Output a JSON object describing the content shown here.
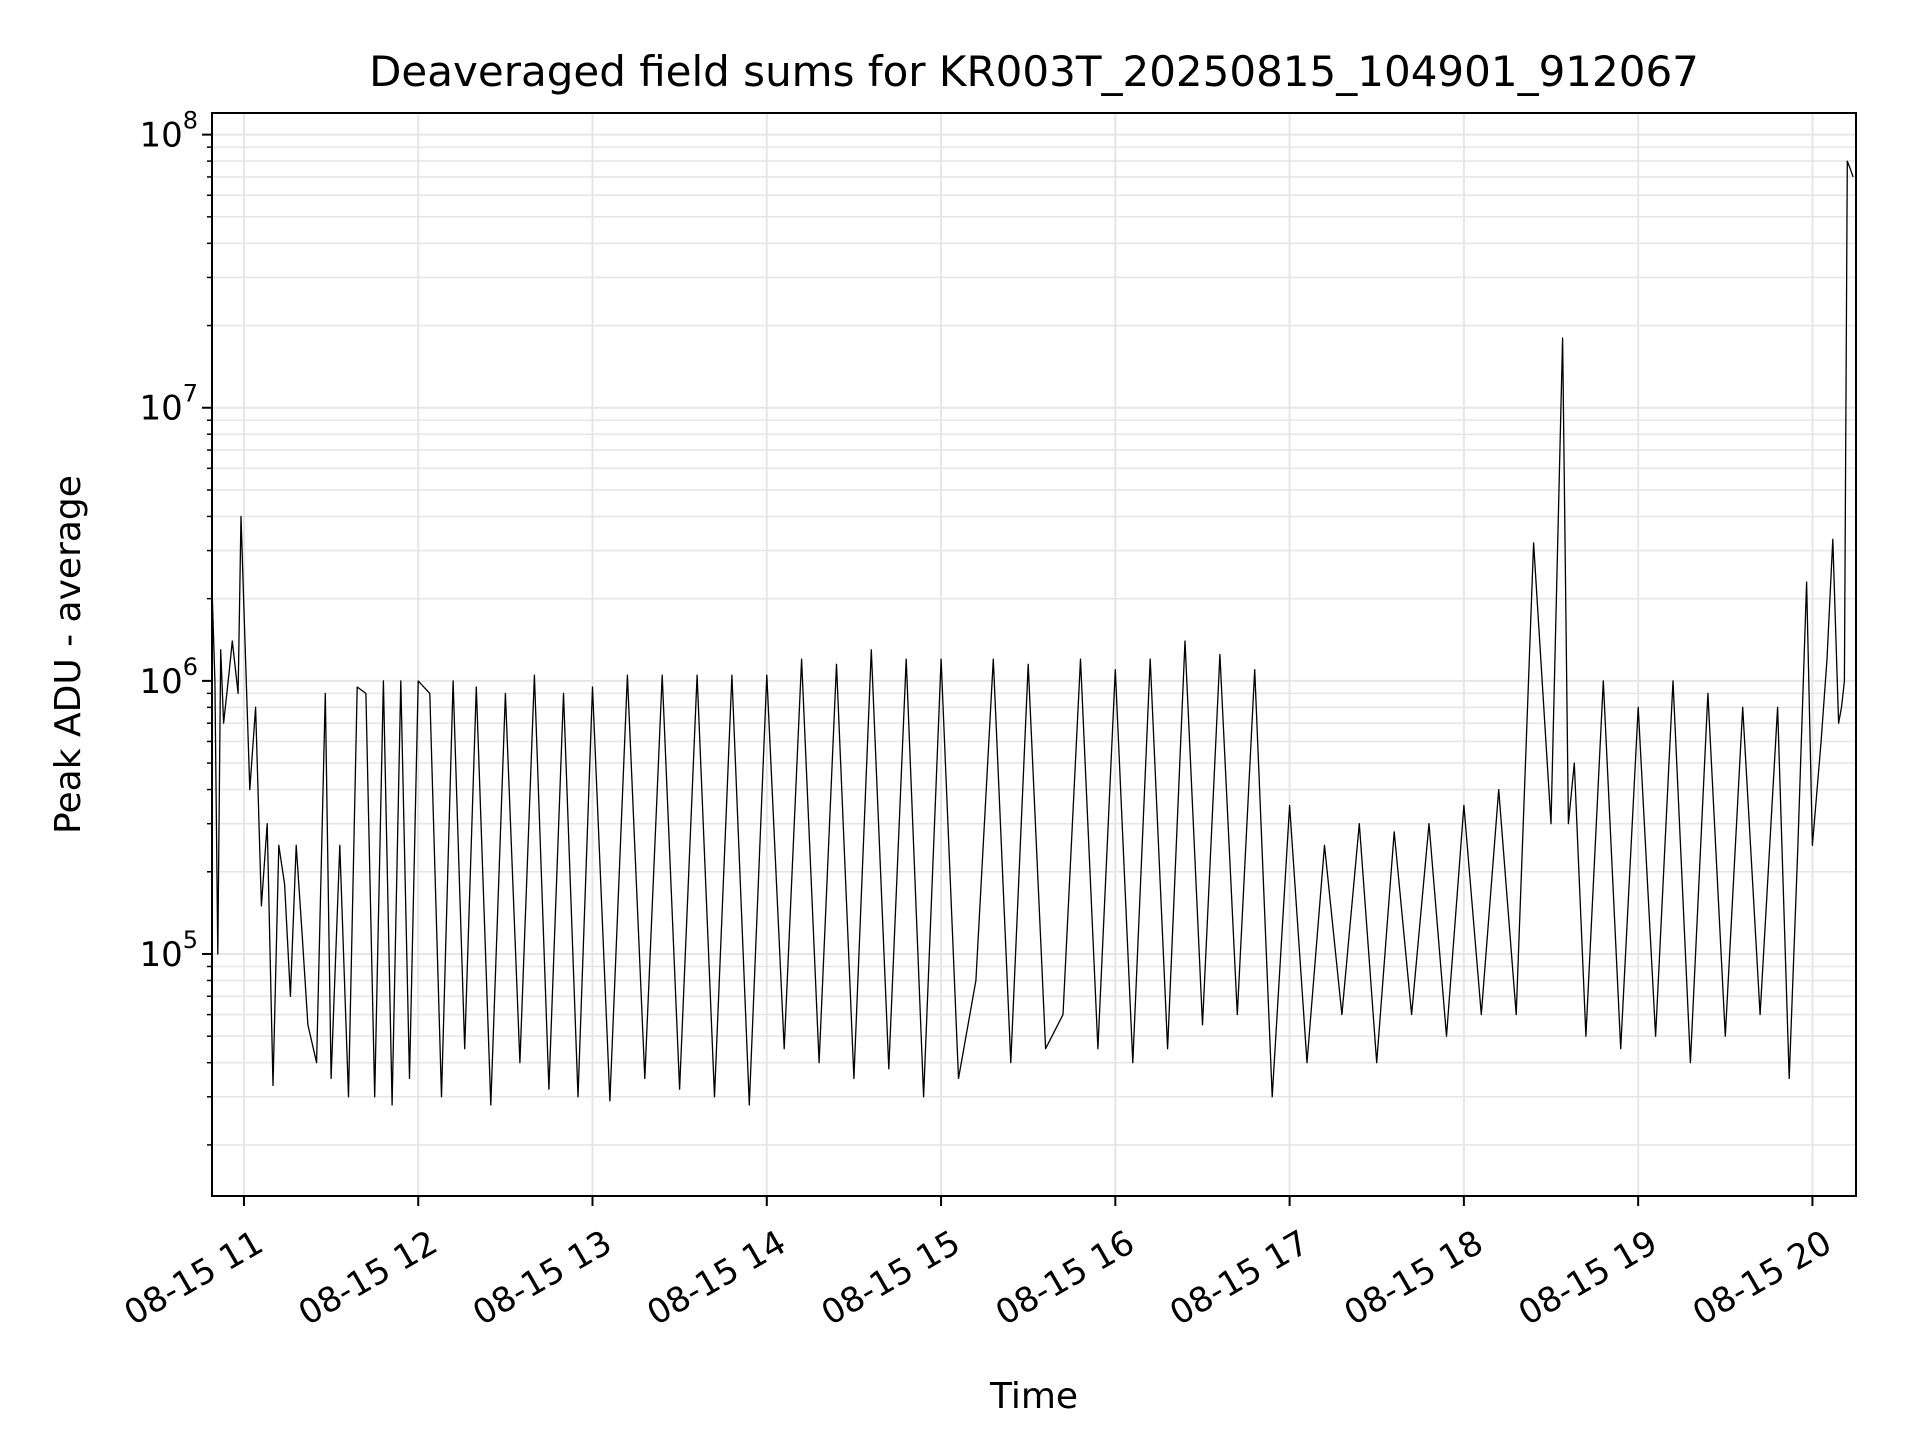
{
  "chart_data": {
    "type": "line",
    "title": "Deaveraged field sums for KR003T_20250815_104901_912067",
    "xlabel": "Time",
    "ylabel": "Peak ADU - average",
    "yscale": "log",
    "xlim": [
      "2025-08-15 10:49",
      "2025-08-15 20:15"
    ],
    "ylim": [
      13000,
      120000000
    ],
    "grid": true,
    "line_color": "#000000",
    "grid_color": "#e6e6e6",
    "x_ticks": [
      {
        "value": "2025-08-15 11:00",
        "label": "08-15 11"
      },
      {
        "value": "2025-08-15 12:00",
        "label": "08-15 12"
      },
      {
        "value": "2025-08-15 13:00",
        "label": "08-15 13"
      },
      {
        "value": "2025-08-15 14:00",
        "label": "08-15 14"
      },
      {
        "value": "2025-08-15 15:00",
        "label": "08-15 15"
      },
      {
        "value": "2025-08-15 16:00",
        "label": "08-15 16"
      },
      {
        "value": "2025-08-15 17:00",
        "label": "08-15 17"
      },
      {
        "value": "2025-08-15 18:00",
        "label": "08-15 18"
      },
      {
        "value": "2025-08-15 19:00",
        "label": "08-15 19"
      },
      {
        "value": "2025-08-15 20:00",
        "label": "08-15 20"
      }
    ],
    "y_ticks": [
      {
        "value": 100000,
        "base": "10",
        "exp": "5"
      },
      {
        "value": 1000000,
        "base": "10",
        "exp": "6"
      },
      {
        "value": 10000000,
        "base": "10",
        "exp": "7"
      },
      {
        "value": 100000000,
        "base": "10",
        "exp": "8"
      }
    ],
    "series": [
      {
        "x": [
          "2025-08-15 10:49",
          "2025-08-15 10:50",
          "2025-08-15 10:51",
          "2025-08-15 10:52",
          "2025-08-15 10:53",
          "2025-08-15 10:55",
          "2025-08-15 10:56",
          "2025-08-15 10:58",
          "2025-08-15 10:59",
          "2025-08-15 11:00",
          "2025-08-15 11:02",
          "2025-08-15 11:04",
          "2025-08-15 11:06",
          "2025-08-15 11:08",
          "2025-08-15 11:10",
          "2025-08-15 11:12",
          "2025-08-15 11:14",
          "2025-08-15 11:16",
          "2025-08-15 11:18",
          "2025-08-15 11:20",
          "2025-08-15 11:22",
          "2025-08-15 11:25",
          "2025-08-15 11:28",
          "2025-08-15 11:30",
          "2025-08-15 11:33",
          "2025-08-15 11:36",
          "2025-08-15 11:39",
          "2025-08-15 11:42",
          "2025-08-15 11:45",
          "2025-08-15 11:48",
          "2025-08-15 11:51",
          "2025-08-15 11:54",
          "2025-08-15 11:57",
          "2025-08-15 12:00",
          "2025-08-15 12:04",
          "2025-08-15 12:08",
          "2025-08-15 12:12",
          "2025-08-15 12:16",
          "2025-08-15 12:20",
          "2025-08-15 12:25",
          "2025-08-15 12:30",
          "2025-08-15 12:35",
          "2025-08-15 12:40",
          "2025-08-15 12:45",
          "2025-08-15 12:50",
          "2025-08-15 12:55",
          "2025-08-15 13:00",
          "2025-08-15 13:06",
          "2025-08-15 13:12",
          "2025-08-15 13:18",
          "2025-08-15 13:24",
          "2025-08-15 13:30",
          "2025-08-15 13:36",
          "2025-08-15 13:42",
          "2025-08-15 13:48",
          "2025-08-15 13:54",
          "2025-08-15 14:00",
          "2025-08-15 14:06",
          "2025-08-15 14:12",
          "2025-08-15 14:18",
          "2025-08-15 14:24",
          "2025-08-15 14:30",
          "2025-08-15 14:36",
          "2025-08-15 14:42",
          "2025-08-15 14:48",
          "2025-08-15 14:54",
          "2025-08-15 15:00",
          "2025-08-15 15:06",
          "2025-08-15 15:12",
          "2025-08-15 15:18",
          "2025-08-15 15:24",
          "2025-08-15 15:30",
          "2025-08-15 15:36",
          "2025-08-15 15:42",
          "2025-08-15 15:48",
          "2025-08-15 15:54",
          "2025-08-15 16:00",
          "2025-08-15 16:06",
          "2025-08-15 16:12",
          "2025-08-15 16:18",
          "2025-08-15 16:24",
          "2025-08-15 16:30",
          "2025-08-15 16:36",
          "2025-08-15 16:42",
          "2025-08-15 16:48",
          "2025-08-15 16:54",
          "2025-08-15 17:00",
          "2025-08-15 17:06",
          "2025-08-15 17:12",
          "2025-08-15 17:18",
          "2025-08-15 17:24",
          "2025-08-15 17:30",
          "2025-08-15 17:36",
          "2025-08-15 17:42",
          "2025-08-15 17:48",
          "2025-08-15 17:54",
          "2025-08-15 18:00",
          "2025-08-15 18:06",
          "2025-08-15 18:12",
          "2025-08-15 18:18",
          "2025-08-15 18:24",
          "2025-08-15 18:30",
          "2025-08-15 18:34",
          "2025-08-15 18:36",
          "2025-08-15 18:38",
          "2025-08-15 18:42",
          "2025-08-15 18:48",
          "2025-08-15 18:54",
          "2025-08-15 19:00",
          "2025-08-15 19:06",
          "2025-08-15 19:12",
          "2025-08-15 19:18",
          "2025-08-15 19:24",
          "2025-08-15 19:30",
          "2025-08-15 19:36",
          "2025-08-15 19:42",
          "2025-08-15 19:48",
          "2025-08-15 19:52",
          "2025-08-15 19:55",
          "2025-08-15 19:58",
          "2025-08-15 20:00",
          "2025-08-15 20:03",
          "2025-08-15 20:05",
          "2025-08-15 20:07",
          "2025-08-15 20:09",
          "2025-08-15 20:10",
          "2025-08-15 20:11",
          "2025-08-15 20:12",
          "2025-08-15 20:13",
          "2025-08-15 20:14"
        ],
        "y": [
          2200000,
          1000000,
          100000,
          1300000,
          700000,
          1100000,
          1400000,
          900000,
          4000000,
          1800000,
          400000,
          800000,
          150000,
          300000,
          33000,
          250000,
          180000,
          70000,
          250000,
          120000,
          55000,
          40000,
          900000,
          35000,
          250000,
          30000,
          950000,
          900000,
          30000,
          1000000,
          28000,
          1000000,
          35000,
          1000000,
          900000,
          30000,
          1000000,
          45000,
          950000,
          28000,
          900000,
          40000,
          1050000,
          32000,
          900000,
          30000,
          950000,
          29000,
          1050000,
          35000,
          1050000,
          32000,
          1050000,
          30000,
          1050000,
          28000,
          1050000,
          45000,
          1200000,
          40000,
          1150000,
          35000,
          1300000,
          38000,
          1200000,
          30000,
          1200000,
          35000,
          80000,
          1200000,
          40000,
          1150000,
          45000,
          60000,
          1200000,
          45000,
          1100000,
          40000,
          1200000,
          45000,
          1400000,
          55000,
          1250000,
          60000,
          1100000,
          30000,
          350000,
          40000,
          250000,
          60000,
          300000,
          40000,
          280000,
          60000,
          300000,
          50000,
          350000,
          60000,
          400000,
          60000,
          3200000,
          300000,
          18000000,
          300000,
          500000,
          50000,
          1000000,
          45000,
          800000,
          50000,
          1000000,
          40000,
          900000,
          50000,
          800000,
          60000,
          800000,
          35000,
          250000,
          2300000,
          250000,
          600000,
          1200000,
          3300000,
          700000,
          800000,
          1000000,
          80000000,
          75000000,
          70000000
        ]
      }
    ]
  }
}
